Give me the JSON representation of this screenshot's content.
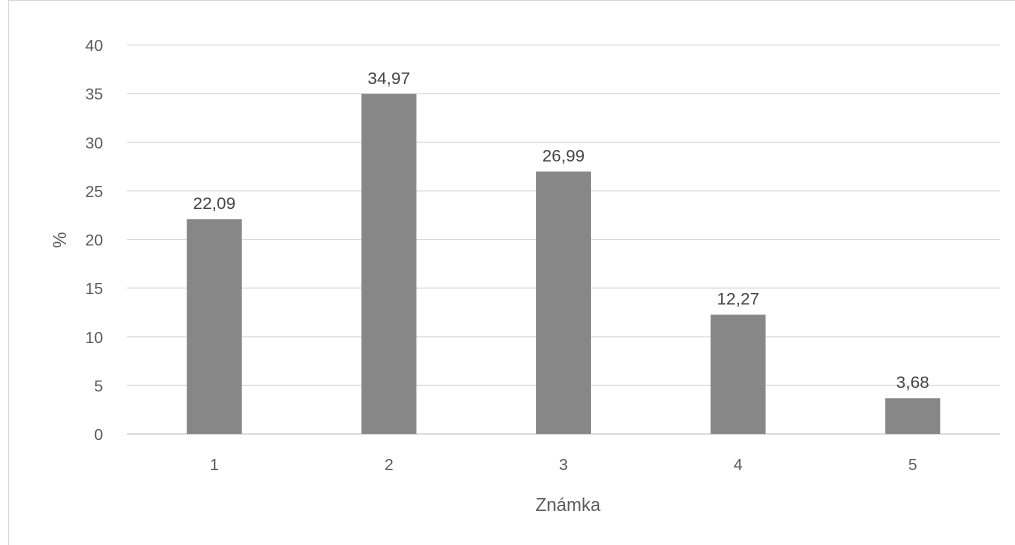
{
  "chart_data": {
    "type": "bar",
    "categories": [
      "1",
      "2",
      "3",
      "4",
      "5"
    ],
    "values": [
      22.09,
      34.97,
      26.99,
      12.27,
      3.68
    ],
    "value_labels": [
      "22,09",
      "34,97",
      "26,99",
      "12,27",
      "3,68"
    ],
    "title": "",
    "xlabel": "Známka",
    "ylabel": "%",
    "ylim": [
      0,
      40
    ],
    "yticks": [
      "0",
      "5",
      "10",
      "15",
      "20",
      "25",
      "30",
      "35",
      "40"
    ],
    "ytick_values": [
      0,
      5,
      10,
      15,
      20,
      25,
      30,
      35,
      40
    ],
    "grid": true,
    "legend": "none",
    "colors": {
      "bar": "#878787",
      "grid": "#d9d9d9",
      "axis": "#bfbfbf"
    }
  }
}
